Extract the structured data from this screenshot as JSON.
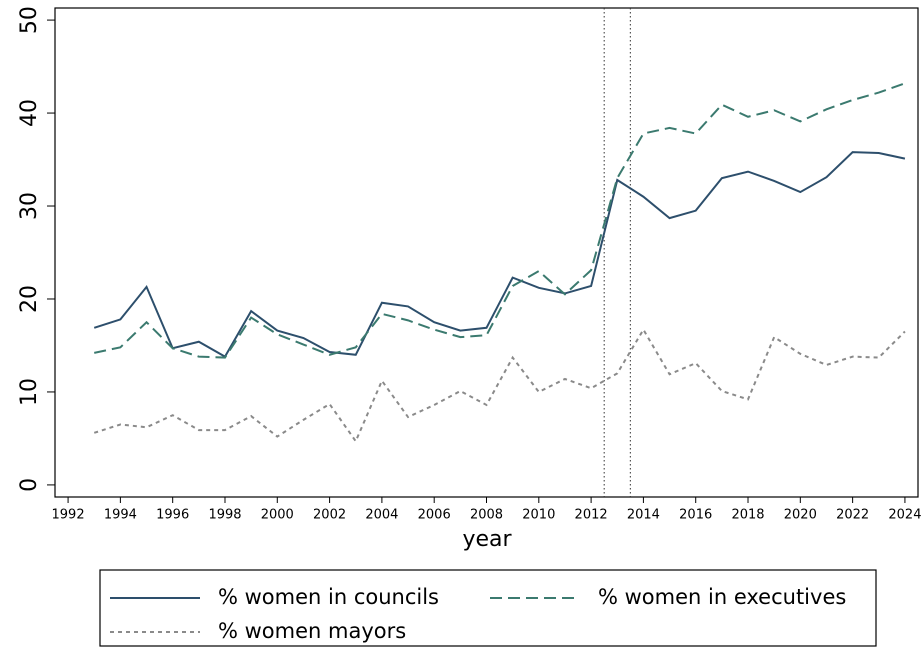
{
  "chart_data": {
    "type": "line",
    "x_label": "year",
    "x": [
      1993,
      1994,
      1995,
      1996,
      1997,
      1998,
      1999,
      2000,
      2001,
      2002,
      2003,
      2004,
      2005,
      2006,
      2007,
      2008,
      2009,
      2010,
      2011,
      2012,
      2013,
      2014,
      2015,
      2016,
      2017,
      2018,
      2019,
      2020,
      2021,
      2022,
      2023,
      2024
    ],
    "series": [
      {
        "name": "% women in councils",
        "color": "#2d4f6c",
        "dash": "solid",
        "values": [
          16.9,
          17.8,
          21.3,
          14.7,
          15.4,
          13.8,
          18.7,
          16.6,
          15.8,
          14.3,
          14.0,
          19.6,
          19.2,
          17.5,
          16.6,
          16.9,
          22.3,
          21.2,
          20.6,
          21.4,
          32.8,
          31.0,
          28.7,
          29.5,
          33.0,
          33.7,
          32.7,
          31.5,
          33.1,
          35.8,
          35.7,
          35.1
        ]
      },
      {
        "name": "% women in executives",
        "color": "#3b7a6f",
        "dash": "dashed",
        "values": [
          14.2,
          14.8,
          17.5,
          14.7,
          13.8,
          13.7,
          18.0,
          16.2,
          15.1,
          14.0,
          14.8,
          18.4,
          17.7,
          16.7,
          15.9,
          16.1,
          21.4,
          23.0,
          20.5,
          23.1,
          33.0,
          37.8,
          38.4,
          37.8,
          40.9,
          39.6,
          40.3,
          39.1,
          40.4,
          41.4,
          42.2,
          43.2
        ]
      },
      {
        "name": "% women mayors",
        "color": "#8a8a8a",
        "dash": "dotted",
        "values": [
          5.6,
          6.5,
          6.2,
          7.5,
          5.9,
          5.9,
          7.4,
          5.2,
          7.0,
          8.7,
          4.7,
          11.2,
          7.3,
          8.6,
          10.1,
          8.6,
          13.7,
          10.0,
          11.4,
          10.4,
          12.0,
          16.7,
          11.9,
          13.1,
          10.1,
          9.2,
          15.9,
          14.1,
          12.9,
          13.8,
          13.7,
          16.5
        ]
      }
    ],
    "xlim": [
      1991.5,
      2024.5
    ],
    "xticks": [
      1992,
      1994,
      1996,
      1998,
      2000,
      2002,
      2004,
      2006,
      2008,
      2010,
      2012,
      2014,
      2016,
      2018,
      2020,
      2022,
      2024
    ],
    "ylim": [
      -1.3,
      51.3
    ],
    "yticks": [
      0,
      10,
      20,
      30,
      40,
      50
    ],
    "vlines": [
      2012.5,
      2013.5
    ],
    "grid": false
  }
}
